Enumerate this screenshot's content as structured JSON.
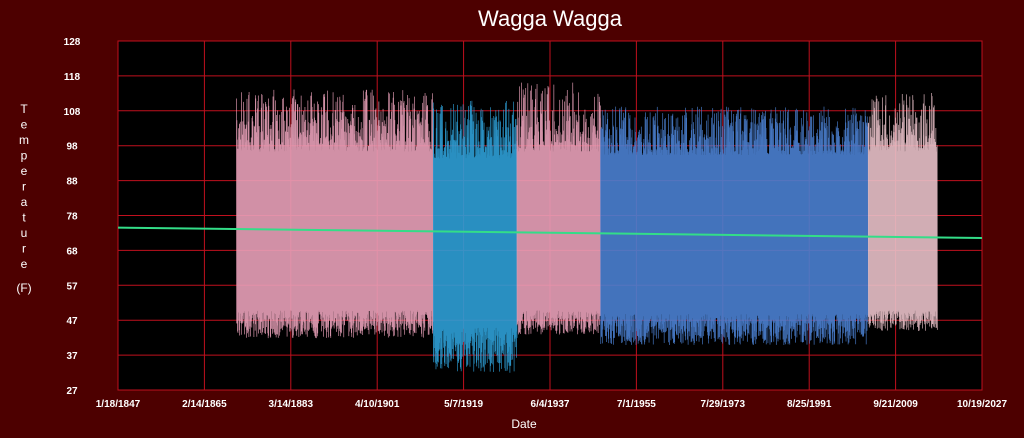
{
  "chart_data": {
    "type": "line",
    "title": "Wagga Wagga",
    "xlabel": "Date",
    "ylabel": "Temperature",
    "yunit": "(F)",
    "ylim": [
      27,
      128
    ],
    "yticks": [
      "128",
      "118",
      "108",
      "98",
      "88",
      "78",
      "68",
      "57",
      "47",
      "37",
      "27"
    ],
    "xlim": [
      "1847-01-18",
      "2027-10-19"
    ],
    "xticks": [
      {
        "label": "1/18/1847",
        "date": "1847-01-18"
      },
      {
        "label": "2/14/1865",
        "date": "1865-02-14"
      },
      {
        "label": "3/14/1883",
        "date": "1883-03-14"
      },
      {
        "label": "4/10/1901",
        "date": "1901-04-10"
      },
      {
        "label": "5/7/1919",
        "date": "1919-05-07"
      },
      {
        "label": "6/4/1937",
        "date": "1937-06-04"
      },
      {
        "label": "7/1/1955",
        "date": "1955-07-01"
      },
      {
        "label": "7/29/1973",
        "date": "1973-07-29"
      },
      {
        "label": "8/25/1991",
        "date": "1991-08-25"
      },
      {
        "label": "9/21/2009",
        "date": "2009-09-21"
      },
      {
        "label": "10/19/2027",
        "date": "2027-10-19"
      }
    ],
    "grid": true,
    "legend": "none",
    "series": [
      {
        "color": "#e8a0b8",
        "x_start": "1871-11-01",
        "x_end": "1912-12-31",
        "min_range": [
          42,
          50
        ],
        "max_range": [
          96,
          114
        ]
      },
      {
        "color": "#2e9ed6",
        "x_start": "1913-01-01",
        "x_end": "1930-06-30",
        "min_range": [
          32,
          45
        ],
        "max_range": [
          94,
          111
        ]
      },
      {
        "color": "#e8a0b8",
        "x_start": "1930-07-01",
        "x_end": "1947-12-31",
        "min_range": [
          43,
          50
        ],
        "max_range": [
          96,
          116
        ]
      },
      {
        "color": "#4a7fd0",
        "x_start": "1948-01-01",
        "x_end": "2003-12-31",
        "min_range": [
          40,
          49
        ],
        "max_range": [
          95,
          109
        ]
      },
      {
        "color": "#e8c0c8",
        "x_start": "2004-01-01",
        "x_end": "2018-06-30",
        "min_range": [
          44,
          50
        ],
        "max_range": [
          96,
          113
        ]
      }
    ],
    "trend": {
      "color": "#33dd88",
      "x": [
        "1847-01-18",
        "2027-10-19"
      ],
      "y": [
        74.0,
        71.0
      ]
    }
  },
  "colors": {
    "background": "#4d0000",
    "plot_background": "#000000",
    "grid": "#c0101e"
  }
}
